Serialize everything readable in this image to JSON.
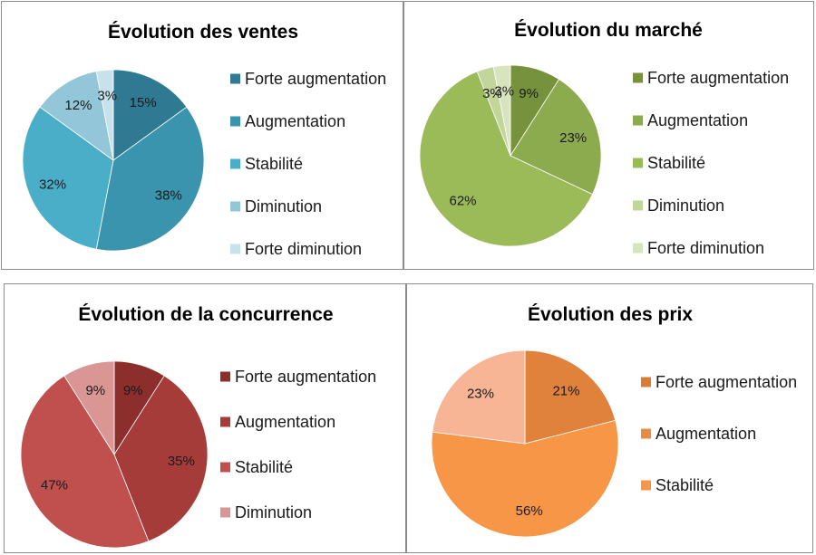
{
  "chart_data": [
    {
      "type": "pie",
      "title": "Évolution des ventes",
      "legend_position": "right",
      "categories": [
        "Forte augmentation",
        "Augmentation",
        "Stabilité",
        "Diminution",
        "Forte diminution"
      ],
      "values": [
        15,
        38,
        32,
        12,
        3
      ],
      "labels": [
        "15%",
        "38%",
        "32%",
        "12%",
        "3%"
      ],
      "colors": [
        "#2f7a92",
        "#3a94ae",
        "#4aaec9",
        "#92c6d8",
        "#c7e2ec"
      ]
    },
    {
      "type": "pie",
      "title": "Évolution du marché",
      "legend_position": "right",
      "categories": [
        "Forte augmentation",
        "Augmentation",
        "Stabilité",
        "Diminution",
        "Forte diminution"
      ],
      "values": [
        9,
        23,
        62,
        3,
        3
      ],
      "labels": [
        "9%",
        "23%",
        "62%",
        "3%",
        "3%"
      ],
      "colors": [
        "#76923c",
        "#8cab4e",
        "#9bbb59",
        "#c2d69b",
        "#d7e4bd"
      ]
    },
    {
      "type": "pie",
      "title": "Évolution de la concurrence",
      "legend_position": "right",
      "categories": [
        "Forte augmentation",
        "Augmentation",
        "Stabilité",
        "Diminution"
      ],
      "values": [
        9,
        35,
        47,
        9
      ],
      "labels": [
        "9%",
        "35%",
        "47%",
        "9%"
      ],
      "colors": [
        "#8c2e2c",
        "#a63c3a",
        "#c0504d",
        "#d99694"
      ]
    },
    {
      "type": "pie",
      "title": "Évolution des prix",
      "legend_position": "right",
      "categories": [
        "Forte augmentation",
        "Augmentation",
        "Stabilité"
      ],
      "values": [
        21,
        56,
        23
      ],
      "labels": [
        "21%",
        "56%",
        "23%"
      ],
      "legend_colors": [
        "#d97c36",
        "#e88c44",
        "#f79646"
      ],
      "colors": [
        "#e0823c",
        "#f79646",
        "#f8b595"
      ]
    }
  ]
}
